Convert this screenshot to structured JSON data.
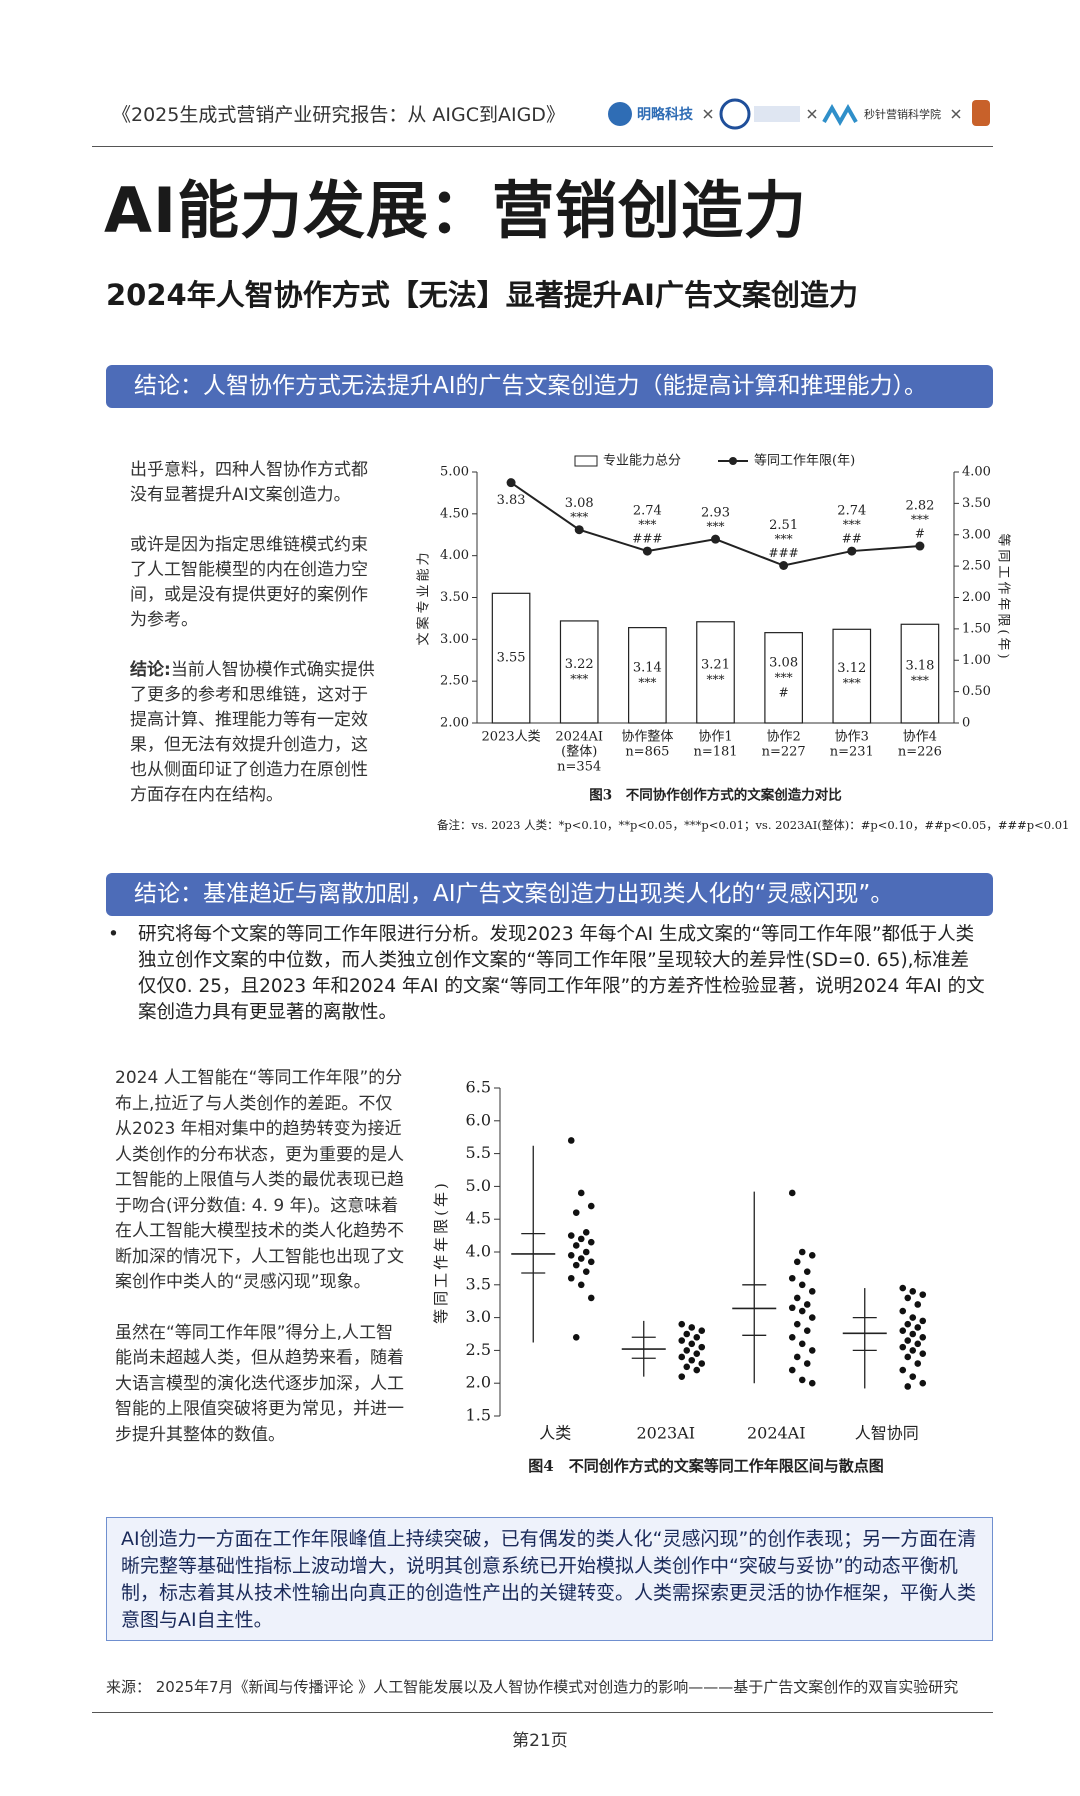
{
  "header": {
    "title": "《2025生成式营销产业研究报告：从 AIGC到AIGD》",
    "logos": [
      "明略科技",
      "秒针营销科学院"
    ]
  },
  "title": "AI能力发展：营销创造力",
  "subtitle": "2024年人智协作方式【无法】显著提升AI广告文案创造力",
  "section1": {
    "banner": "结论：人智协作方式无法提升AI的广告文案创造力（能提高计算和推理能力）。",
    "paragraphs": [
      "出乎意料，四种人智协作方式都没有显著提升AI文案创造力。",
      "或许是因为指定思维链模式约束了人工智能模型的内在创造力空间，或是没有提供更好的案例作为参考。"
    ],
    "conclusion_label": "结论:",
    "conclusion_text": "当前人智协模作式确实提供了更多的参考和思维链，这对于提高计算、推理能力等有一定效果，但无法有效提升创造力，这也从侧面印证了创造力在原创性方面存在内在结构。"
  },
  "section2": {
    "banner": "结论：基准趋近与离散加剧，AI广告文案创造力出现类人化的“灵感闪现”。",
    "bullet": "研究将每个文案的等同工作年限进行分析。发现2023 年每个AI 生成文案的“等同工作年限”都低于人类独立创作文案的中位数，而人类独立创作文案的“等同工作年限”呈现较大的差异性(SD=0. 65),标准差仅仅0. 25，且2023 年和2024 年AI 的文案“等同工作年限”的方差齐性检验显著，说明2024 年AI 的文案创造力具有更显著的离散性。",
    "paragraphs": [
      "2024 人工智能在“等同工作年限”的分布上,拉近了与人类创作的差距。不仅从2023 年相对集中的趋势转变为接近人类创作的分布状态，更为重要的是人工智能的上限值与人类的最优表现已趋于吻合(评分数值: 4. 9 年)。这意味着在人工智能大模型技术的类人化趋势不断加深的情况下，人工智能也出现了文案创作中类人的“灵感闪现”现象。",
      "虽然在“等同工作年限”得分上,人工智能尚未超越人类，但从趋势来看，随着大语言模型的演化迭代逐步加深，人工智能的上限值突破将更为常见，并进一步提升其整体的数值。"
    ],
    "summary": "AI创造力一方面在工作年限峰值上持续突破，已有偶发的类人化“灵感闪现”的创作表现；另一方面在清晰完整等基础性指标上波动增大，说明其创意系统已开始模拟人类创作中“突破与妥协”的动态平衡机制，标志着其从技术性输出向真正的创造性产出的关键转变。人类需探索更灵活的协作框架，平衡人类意图与AI自主性。"
  },
  "source": "来源： 2025年7月《新闻与传播评论 》人工智能发展以及人智协作模式对创造力的影响———基于广告文案创作的双盲实验研究",
  "page_number": "第21页",
  "chart_data": [
    {
      "type": "bar_line",
      "caption": "图3　不同协作创作方式的文案创造力对比",
      "ylabel": "文案专业能力",
      "y2label": "等同工作年限(年)",
      "note": "备注：vs. 2023 人类：*p<0.10，**p<0.05，***p<0.01；vs. 2023AI(整体)：#p<0.10，##p<0.05，###p<0.01",
      "categories": [
        [
          "2023人类"
        ],
        [
          "2024AI",
          "(整体)",
          "n=354"
        ],
        [
          "协作整体",
          "n=865"
        ],
        [
          "协作1",
          "n=181"
        ],
        [
          "协作2",
          "n=227"
        ],
        [
          "协作3",
          "n=231"
        ],
        [
          "协作4",
          "n=226"
        ]
      ],
      "series": [
        {
          "name": "专业能力总分",
          "kind": "bar",
          "color": "#ffffff",
          "values": [
            3.55,
            3.22,
            3.14,
            3.21,
            3.08,
            3.12,
            3.18
          ],
          "annotations": [
            [],
            [
              "***"
            ],
            [
              "***"
            ],
            [
              "***"
            ],
            [
              "***",
              "#"
            ],
            [
              "***"
            ],
            [
              "***"
            ]
          ]
        },
        {
          "name": "等同工作年限(年)",
          "kind": "line",
          "axis": "y2",
          "color": "#222222",
          "values": [
            3.83,
            3.08,
            2.74,
            2.93,
            2.51,
            2.74,
            2.82
          ],
          "annotations": [
            [],
            [
              "***"
            ],
            [
              "***",
              "###"
            ],
            [
              "***"
            ],
            [
              "***",
              "###"
            ],
            [
              "***",
              "##"
            ],
            [
              "***",
              "#"
            ]
          ]
        }
      ],
      "ylim": [
        2,
        5
      ],
      "yticks": [
        {
          "value": 2,
          "label": "2.00"
        },
        {
          "value": 2.5,
          "label": "2.50"
        },
        {
          "value": 3,
          "label": "3.00"
        },
        {
          "value": 3.5,
          "label": "3.50"
        },
        {
          "value": 4,
          "label": "4.00"
        },
        {
          "value": 4.5,
          "label": "4.50"
        },
        {
          "value": 5,
          "label": "5.00"
        }
      ],
      "y2lim": [
        0,
        4
      ],
      "y2ticks": [
        0,
        {
          "value": 0.5,
          "label": "0.50"
        },
        {
          "value": 1,
          "label": "1.00"
        },
        {
          "value": 1.5,
          "label": "1.50"
        },
        {
          "value": 2,
          "label": "2.00"
        },
        {
          "value": 2.5,
          "label": "2.50"
        },
        {
          "value": 3,
          "label": "3.00"
        },
        {
          "value": 3.5,
          "label": "3.50"
        },
        {
          "value": 4,
          "label": "4.00"
        }
      ]
    },
    {
      "type": "interval_scatter",
      "caption": "图4　不同创作方式的文案等同工作年限区间与散点图",
      "ylabel": "等同工作年限(年)",
      "categories": [
        "人类",
        "2023AI",
        "2024AI",
        "人智协同"
      ],
      "ylim": [
        1.5,
        6.5
      ],
      "yticks": [
        1.5,
        {
          "value": 2,
          "label": "2.0"
        },
        2.5,
        {
          "value": 3,
          "label": "3.0"
        },
        3.5,
        {
          "value": 4,
          "label": "4.0"
        },
        4.5,
        {
          "value": 5,
          "label": "5.0"
        },
        5.5,
        {
          "value": 6,
          "label": "6.0"
        },
        6.5
      ],
      "groups": [
        {
          "min": 2.62,
          "max": 5.62,
          "mean": 3.97,
          "ci": [
            3.68,
            4.28
          ],
          "points": [
            5.7,
            4.9,
            4.7,
            4.6,
            4.3,
            4.25,
            4.2,
            4.15,
            4.1,
            4.0,
            3.95,
            3.9,
            3.85,
            3.8,
            3.7,
            3.6,
            3.5,
            3.3,
            2.7
          ]
        },
        {
          "min": 2.1,
          "max": 2.95,
          "mean": 2.52,
          "ci": [
            2.38,
            2.7
          ],
          "points": [
            2.9,
            2.85,
            2.8,
            2.75,
            2.7,
            2.65,
            2.6,
            2.55,
            2.5,
            2.45,
            2.4,
            2.35,
            2.3,
            2.25,
            2.2,
            2.1
          ]
        },
        {
          "min": 2.0,
          "max": 4.92,
          "mean": 3.14,
          "ci": [
            2.73,
            3.5
          ],
          "points": [
            4.9,
            4.0,
            3.95,
            3.85,
            3.7,
            3.6,
            3.5,
            3.4,
            3.3,
            3.2,
            3.15,
            3.1,
            3.0,
            2.9,
            2.8,
            2.7,
            2.6,
            2.5,
            2.4,
            2.3,
            2.2,
            2.05,
            2.0
          ]
        },
        {
          "min": 1.92,
          "max": 3.45,
          "mean": 2.76,
          "ci": [
            2.5,
            3.0
          ],
          "points": [
            3.45,
            3.4,
            3.35,
            3.3,
            3.2,
            3.1,
            3.0,
            2.95,
            2.9,
            2.85,
            2.8,
            2.75,
            2.7,
            2.65,
            2.6,
            2.55,
            2.5,
            2.45,
            2.4,
            2.3,
            2.2,
            2.1,
            2.0,
            1.95
          ]
        }
      ]
    }
  ]
}
